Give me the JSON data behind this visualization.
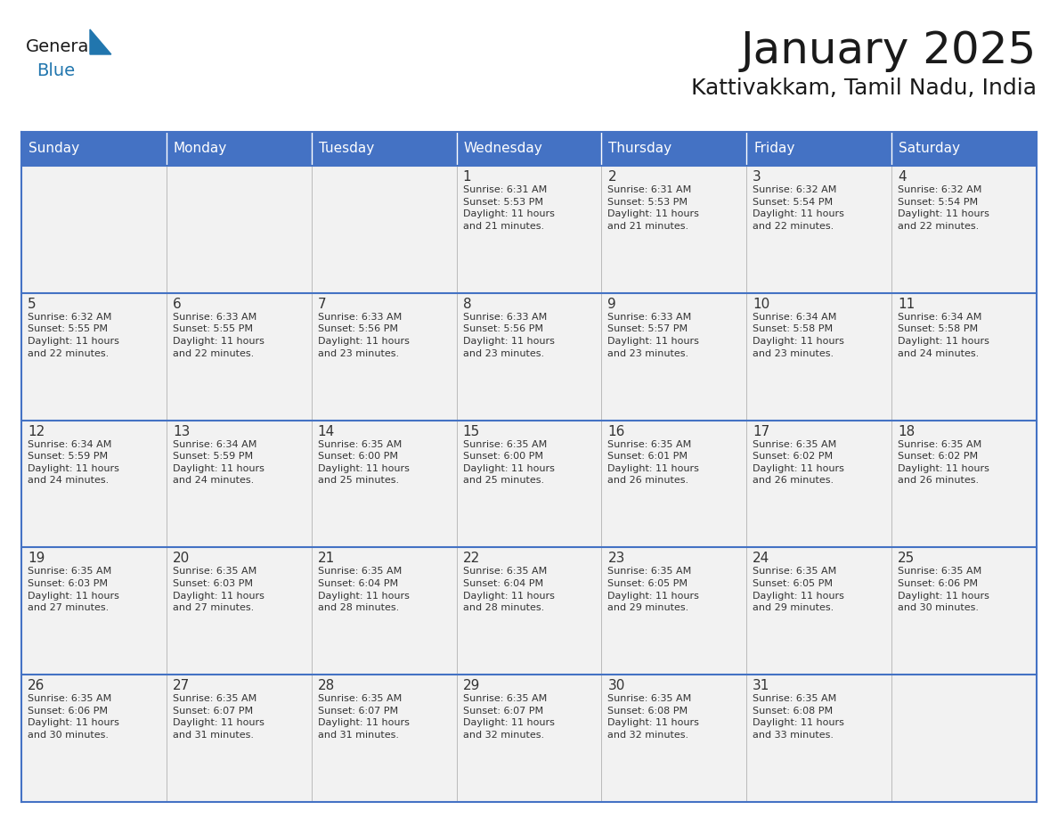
{
  "title": "January 2025",
  "subtitle": "Kattivakkam, Tamil Nadu, India",
  "header_color": "#4472C4",
  "header_text_color": "#FFFFFF",
  "cell_bg_color": "#F2F2F2",
  "text_color": "#333333",
  "day_num_color": "#333333",
  "info_text_color": "#333333",
  "line_color": "#4472C4",
  "days_of_week": [
    "Sunday",
    "Monday",
    "Tuesday",
    "Wednesday",
    "Thursday",
    "Friday",
    "Saturday"
  ],
  "weeks": [
    [
      {
        "day": "",
        "info": ""
      },
      {
        "day": "",
        "info": ""
      },
      {
        "day": "",
        "info": ""
      },
      {
        "day": "1",
        "info": "Sunrise: 6:31 AM\nSunset: 5:53 PM\nDaylight: 11 hours\nand 21 minutes."
      },
      {
        "day": "2",
        "info": "Sunrise: 6:31 AM\nSunset: 5:53 PM\nDaylight: 11 hours\nand 21 minutes."
      },
      {
        "day": "3",
        "info": "Sunrise: 6:32 AM\nSunset: 5:54 PM\nDaylight: 11 hours\nand 22 minutes."
      },
      {
        "day": "4",
        "info": "Sunrise: 6:32 AM\nSunset: 5:54 PM\nDaylight: 11 hours\nand 22 minutes."
      }
    ],
    [
      {
        "day": "5",
        "info": "Sunrise: 6:32 AM\nSunset: 5:55 PM\nDaylight: 11 hours\nand 22 minutes."
      },
      {
        "day": "6",
        "info": "Sunrise: 6:33 AM\nSunset: 5:55 PM\nDaylight: 11 hours\nand 22 minutes."
      },
      {
        "day": "7",
        "info": "Sunrise: 6:33 AM\nSunset: 5:56 PM\nDaylight: 11 hours\nand 23 minutes."
      },
      {
        "day": "8",
        "info": "Sunrise: 6:33 AM\nSunset: 5:56 PM\nDaylight: 11 hours\nand 23 minutes."
      },
      {
        "day": "9",
        "info": "Sunrise: 6:33 AM\nSunset: 5:57 PM\nDaylight: 11 hours\nand 23 minutes."
      },
      {
        "day": "10",
        "info": "Sunrise: 6:34 AM\nSunset: 5:58 PM\nDaylight: 11 hours\nand 23 minutes."
      },
      {
        "day": "11",
        "info": "Sunrise: 6:34 AM\nSunset: 5:58 PM\nDaylight: 11 hours\nand 24 minutes."
      }
    ],
    [
      {
        "day": "12",
        "info": "Sunrise: 6:34 AM\nSunset: 5:59 PM\nDaylight: 11 hours\nand 24 minutes."
      },
      {
        "day": "13",
        "info": "Sunrise: 6:34 AM\nSunset: 5:59 PM\nDaylight: 11 hours\nand 24 minutes."
      },
      {
        "day": "14",
        "info": "Sunrise: 6:35 AM\nSunset: 6:00 PM\nDaylight: 11 hours\nand 25 minutes."
      },
      {
        "day": "15",
        "info": "Sunrise: 6:35 AM\nSunset: 6:00 PM\nDaylight: 11 hours\nand 25 minutes."
      },
      {
        "day": "16",
        "info": "Sunrise: 6:35 AM\nSunset: 6:01 PM\nDaylight: 11 hours\nand 26 minutes."
      },
      {
        "day": "17",
        "info": "Sunrise: 6:35 AM\nSunset: 6:02 PM\nDaylight: 11 hours\nand 26 minutes."
      },
      {
        "day": "18",
        "info": "Sunrise: 6:35 AM\nSunset: 6:02 PM\nDaylight: 11 hours\nand 26 minutes."
      }
    ],
    [
      {
        "day": "19",
        "info": "Sunrise: 6:35 AM\nSunset: 6:03 PM\nDaylight: 11 hours\nand 27 minutes."
      },
      {
        "day": "20",
        "info": "Sunrise: 6:35 AM\nSunset: 6:03 PM\nDaylight: 11 hours\nand 27 minutes."
      },
      {
        "day": "21",
        "info": "Sunrise: 6:35 AM\nSunset: 6:04 PM\nDaylight: 11 hours\nand 28 minutes."
      },
      {
        "day": "22",
        "info": "Sunrise: 6:35 AM\nSunset: 6:04 PM\nDaylight: 11 hours\nand 28 minutes."
      },
      {
        "day": "23",
        "info": "Sunrise: 6:35 AM\nSunset: 6:05 PM\nDaylight: 11 hours\nand 29 minutes."
      },
      {
        "day": "24",
        "info": "Sunrise: 6:35 AM\nSunset: 6:05 PM\nDaylight: 11 hours\nand 29 minutes."
      },
      {
        "day": "25",
        "info": "Sunrise: 6:35 AM\nSunset: 6:06 PM\nDaylight: 11 hours\nand 30 minutes."
      }
    ],
    [
      {
        "day": "26",
        "info": "Sunrise: 6:35 AM\nSunset: 6:06 PM\nDaylight: 11 hours\nand 30 minutes."
      },
      {
        "day": "27",
        "info": "Sunrise: 6:35 AM\nSunset: 6:07 PM\nDaylight: 11 hours\nand 31 minutes."
      },
      {
        "day": "28",
        "info": "Sunrise: 6:35 AM\nSunset: 6:07 PM\nDaylight: 11 hours\nand 31 minutes."
      },
      {
        "day": "29",
        "info": "Sunrise: 6:35 AM\nSunset: 6:07 PM\nDaylight: 11 hours\nand 32 minutes."
      },
      {
        "day": "30",
        "info": "Sunrise: 6:35 AM\nSunset: 6:08 PM\nDaylight: 11 hours\nand 32 minutes."
      },
      {
        "day": "31",
        "info": "Sunrise: 6:35 AM\nSunset: 6:08 PM\nDaylight: 11 hours\nand 33 minutes."
      },
      {
        "day": "",
        "info": ""
      }
    ]
  ],
  "logo_general_color": "#1A1A1A",
  "logo_blue_color": "#2176AE",
  "logo_triangle_color": "#2176AE",
  "title_fontsize": 36,
  "subtitle_fontsize": 18,
  "header_fontsize": 11,
  "day_num_fontsize": 11,
  "info_fontsize": 8
}
